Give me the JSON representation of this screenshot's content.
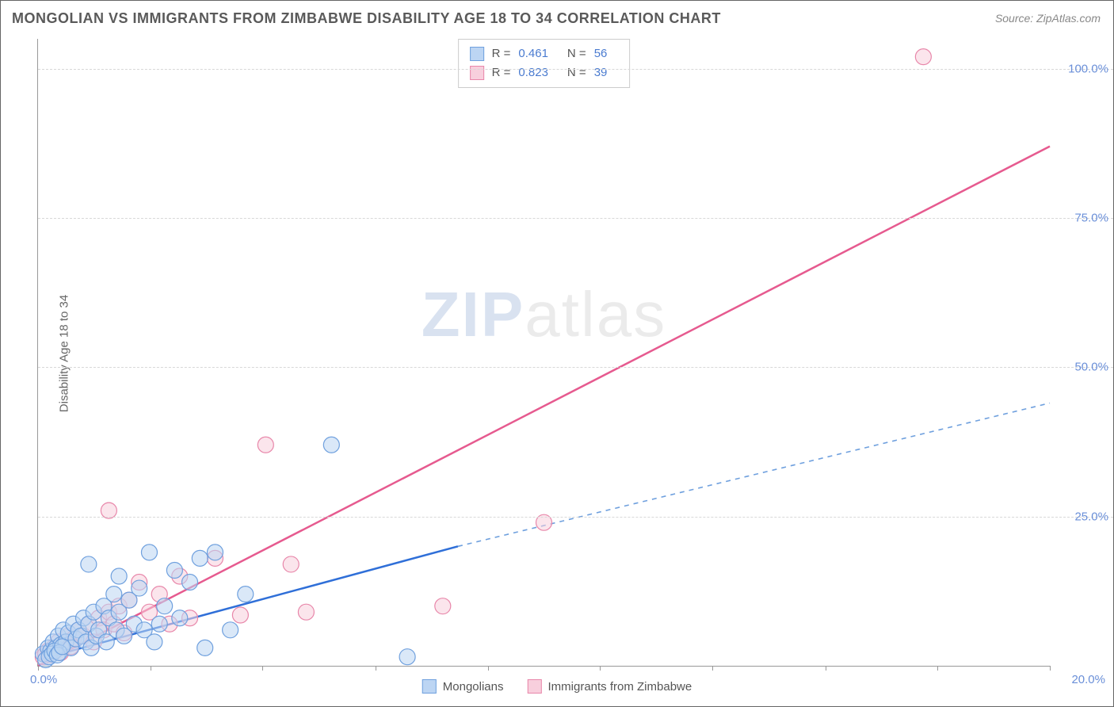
{
  "title": "MONGOLIAN VS IMMIGRANTS FROM ZIMBABWE DISABILITY AGE 18 TO 34 CORRELATION CHART",
  "source": "Source: ZipAtlas.com",
  "ylabel": "Disability Age 18 to 34",
  "watermark": {
    "zip": "ZIP",
    "atlas": "atlas"
  },
  "chart": {
    "type": "scatter",
    "xlim": [
      0,
      20
    ],
    "ylim": [
      0,
      105
    ],
    "x_ticks": [
      0,
      2.22,
      4.44,
      6.67,
      8.89,
      11.11,
      13.33,
      15.56,
      17.78,
      20
    ],
    "x_tick_labels": {
      "first": "0.0%",
      "last": "20.0%"
    },
    "y_grid": [
      25,
      50,
      75,
      100
    ],
    "y_tick_labels": [
      "25.0%",
      "50.0%",
      "75.0%",
      "100.0%"
    ],
    "background_color": "#ffffff",
    "grid_color": "#d8d8d8",
    "axis_color": "#999999"
  },
  "series": {
    "mongolians": {
      "label": "Mongolians",
      "color_fill": "#bcd5f3",
      "color_stroke": "#6fa0de",
      "marker_radius": 10,
      "stats": {
        "R": "0.461",
        "N": "56"
      },
      "trend": {
        "solid": {
          "x1": 0,
          "y1": 1,
          "x2": 8.3,
          "y2": 20,
          "color": "#2f6fd8",
          "width": 2.5
        },
        "dashed": {
          "x1": 8.3,
          "y1": 20,
          "x2": 20,
          "y2": 44,
          "color": "#6fa0de",
          "width": 1.6,
          "dash": "6,6"
        }
      },
      "points": [
        [
          0.1,
          2
        ],
        [
          0.2,
          3
        ],
        [
          0.25,
          2.5
        ],
        [
          0.3,
          4
        ],
        [
          0.35,
          3
        ],
        [
          0.4,
          5
        ],
        [
          0.45,
          3.5
        ],
        [
          0.5,
          6
        ],
        [
          0.55,
          4
        ],
        [
          0.6,
          5.5
        ],
        [
          0.65,
          3
        ],
        [
          0.7,
          7
        ],
        [
          0.75,
          4.5
        ],
        [
          0.8,
          6
        ],
        [
          0.85,
          5
        ],
        [
          0.9,
          8
        ],
        [
          0.95,
          4
        ],
        [
          1.0,
          7
        ],
        [
          1.05,
          3
        ],
        [
          1.1,
          9
        ],
        [
          1.15,
          5
        ],
        [
          1.2,
          6
        ],
        [
          1.3,
          10
        ],
        [
          1.35,
          4
        ],
        [
          1.4,
          8
        ],
        [
          1.5,
          12
        ],
        [
          1.55,
          6
        ],
        [
          1.6,
          9
        ],
        [
          1.7,
          5
        ],
        [
          1.8,
          11
        ],
        [
          1.9,
          7
        ],
        [
          2.0,
          13
        ],
        [
          2.1,
          6
        ],
        [
          2.2,
          19
        ],
        [
          2.3,
          4
        ],
        [
          2.5,
          10
        ],
        [
          2.7,
          16
        ],
        [
          1.0,
          17
        ],
        [
          1.6,
          15
        ],
        [
          3.0,
          14
        ],
        [
          3.2,
          18
        ],
        [
          3.3,
          3
        ],
        [
          3.5,
          19
        ],
        [
          2.4,
          7
        ],
        [
          2.8,
          8
        ],
        [
          5.8,
          37
        ],
        [
          4.1,
          12
        ],
        [
          3.8,
          6
        ],
        [
          7.3,
          1.5
        ],
        [
          0.15,
          1
        ],
        [
          0.22,
          1.5
        ],
        [
          0.28,
          2
        ],
        [
          0.33,
          2.5
        ],
        [
          0.38,
          1.8
        ],
        [
          0.42,
          2.2
        ],
        [
          0.48,
          3.2
        ]
      ]
    },
    "zimbabwe": {
      "label": "Immigrants from Zimbabwe",
      "color_fill": "#f8cfdd",
      "color_stroke": "#e887aa",
      "marker_radius": 10,
      "stats": {
        "R": "0.823",
        "N": "39"
      },
      "trend": {
        "solid": {
          "x1": 0,
          "y1": 0,
          "x2": 20,
          "y2": 87,
          "color": "#e65a8f",
          "width": 2.5
        }
      },
      "points": [
        [
          0.1,
          1.5
        ],
        [
          0.2,
          2.5
        ],
        [
          0.3,
          3
        ],
        [
          0.4,
          4
        ],
        [
          0.5,
          3.5
        ],
        [
          0.6,
          5
        ],
        [
          0.7,
          4.5
        ],
        [
          0.8,
          6
        ],
        [
          0.9,
          5
        ],
        [
          1.0,
          7
        ],
        [
          1.1,
          4
        ],
        [
          1.2,
          8
        ],
        [
          1.3,
          6
        ],
        [
          1.4,
          9
        ],
        [
          1.5,
          7
        ],
        [
          1.6,
          10
        ],
        [
          1.7,
          5.5
        ],
        [
          1.8,
          11
        ],
        [
          2.0,
          14
        ],
        [
          2.2,
          9
        ],
        [
          2.4,
          12
        ],
        [
          2.6,
          7
        ],
        [
          2.8,
          15
        ],
        [
          1.4,
          26
        ],
        [
          3.0,
          8
        ],
        [
          3.5,
          18
        ],
        [
          4.0,
          8.5
        ],
        [
          4.5,
          37
        ],
        [
          5.0,
          17
        ],
        [
          5.3,
          9
        ],
        [
          8.0,
          10
        ],
        [
          10.0,
          24
        ],
        [
          17.5,
          102
        ],
        [
          0.15,
          2
        ],
        [
          0.25,
          1.8
        ],
        [
          0.35,
          2.8
        ],
        [
          0.45,
          2.2
        ],
        [
          0.55,
          3.8
        ],
        [
          0.65,
          3.2
        ]
      ]
    }
  },
  "stats_box": {
    "r_label": "R =",
    "n_label": "N ="
  },
  "bottom_legend": {
    "items": [
      "mongolians",
      "zimbabwe"
    ]
  }
}
